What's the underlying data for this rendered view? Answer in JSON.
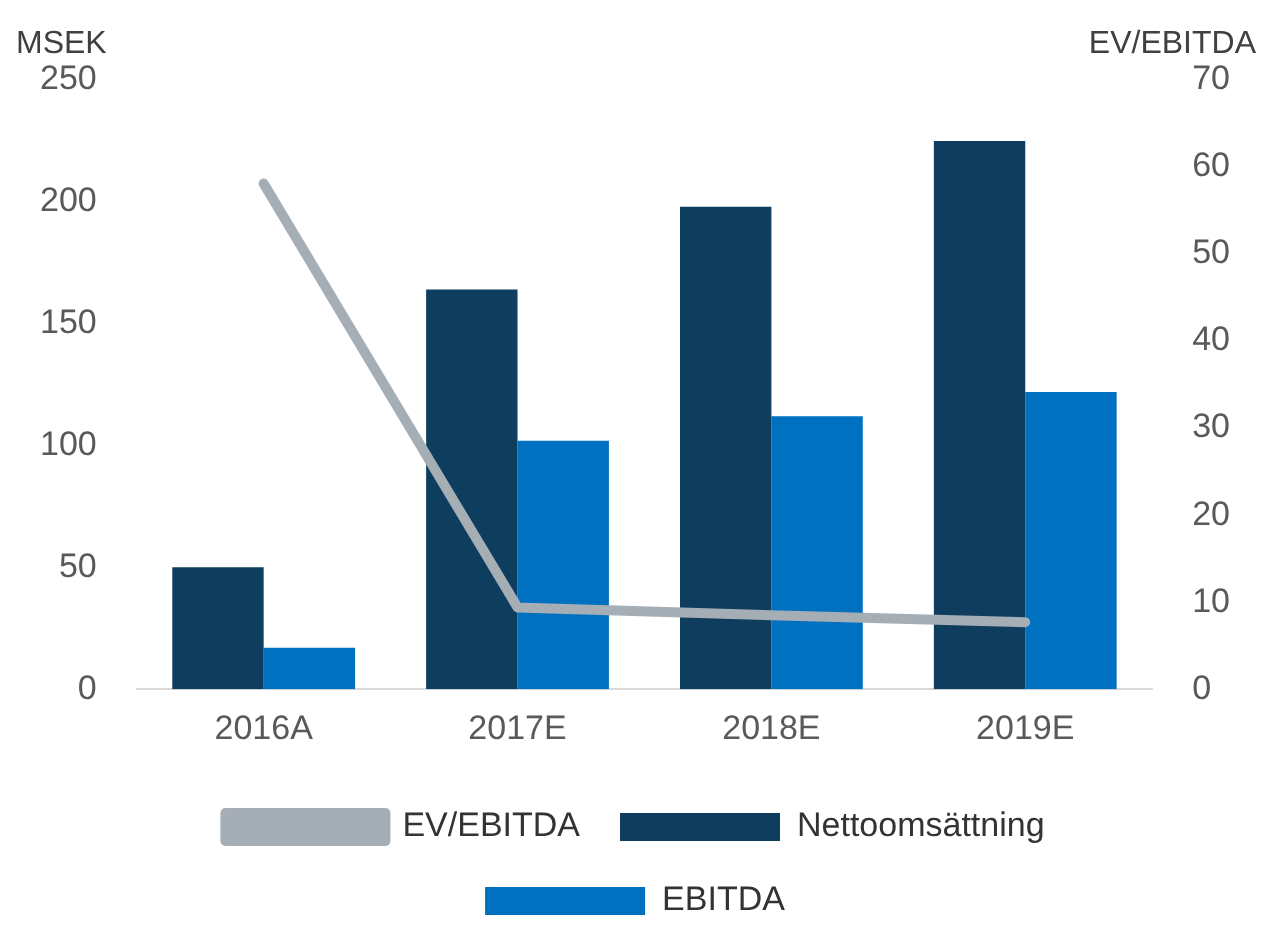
{
  "chart_data": {
    "type": "bar",
    "ylabel": "MSEK",
    "y2label": "EV/EBITDA",
    "categories": [
      "2016A",
      "2017E",
      "2018E",
      "2019E"
    ],
    "series": [
      {
        "name": "Nettoomsättning",
        "color": "#0e3d5e",
        "values": [
          50,
          164,
          198,
          225
        ]
      },
      {
        "name": "EBITDA",
        "color": "#0070c0",
        "values": [
          17,
          102,
          112,
          122
        ]
      },
      {
        "name": "EV/EBITDA",
        "type": "line",
        "axis": "y2",
        "color": "#a5adb5",
        "values": [
          58.1,
          9.4,
          8.5,
          7.7
        ]
      }
    ],
    "ylim": [
      0,
      250
    ],
    "yticks": [
      0,
      50,
      100,
      150,
      200,
      250
    ],
    "y2lim": [
      0,
      70
    ],
    "y2ticks": [
      0,
      10,
      20,
      30,
      40,
      50,
      60,
      70
    ],
    "grid": false,
    "legend": "bottom",
    "marker": "none"
  }
}
